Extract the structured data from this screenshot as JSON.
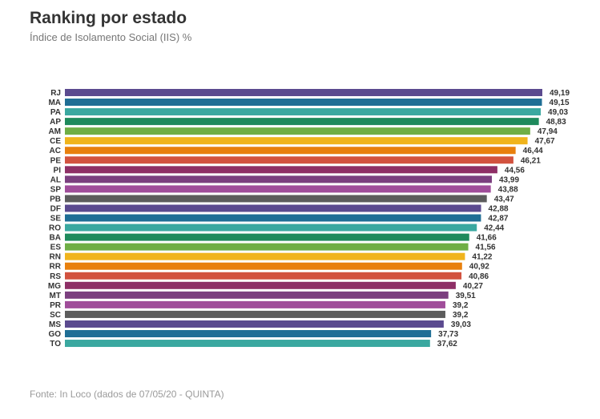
{
  "header": {
    "title": "Ranking por estado",
    "subtitle": "Índice de Isolamento Social (IIS) %"
  },
  "footer": {
    "source": "Fonte: In Loco (dados de 07/05/20 - QUINTA)"
  },
  "chart_data": {
    "type": "bar",
    "orientation": "horizontal",
    "title": "Ranking por estado",
    "subtitle": "Índice de Isolamento Social (IIS) %",
    "categories": [
      "RJ",
      "MA",
      "PA",
      "AP",
      "AM",
      "CE",
      "AC",
      "PE",
      "PI",
      "AL",
      "SP",
      "PB",
      "DF",
      "SE",
      "RO",
      "BA",
      "ES",
      "RN",
      "RR",
      "RS",
      "MG",
      "MT",
      "PR",
      "SC",
      "MS",
      "GO",
      "TO"
    ],
    "values": [
      49.19,
      49.15,
      49.03,
      48.83,
      47.94,
      47.67,
      46.44,
      46.21,
      44.56,
      43.99,
      43.88,
      43.47,
      42.88,
      42.87,
      42.44,
      41.66,
      41.56,
      41.22,
      40.92,
      40.86,
      40.27,
      39.51,
      39.2,
      39.2,
      39.03,
      37.73,
      37.62
    ],
    "value_labels": [
      "49,19",
      "49,15",
      "49,03",
      "48,83",
      "47,94",
      "47,67",
      "46,44",
      "46,21",
      "44,56",
      "43,99",
      "43,88",
      "43,47",
      "42,88",
      "42,87",
      "42,44",
      "41,66",
      "41,56",
      "41,22",
      "40,92",
      "40,86",
      "40,27",
      "39,51",
      "39,2",
      "39,2",
      "39,03",
      "37,73",
      "37,62"
    ],
    "colors": [
      "#5b4a8f",
      "#1f6e95",
      "#3aa8a0",
      "#1e8a5c",
      "#6fae45",
      "#f0b41c",
      "#e8800d",
      "#d2523f",
      "#8e2f66",
      "#7b3f7f",
      "#a04d9a",
      "#5c5c5c"
    ],
    "xlim": [
      0,
      49.19
    ],
    "xlabel": "",
    "ylabel": "",
    "grid": false,
    "legend": "none"
  }
}
